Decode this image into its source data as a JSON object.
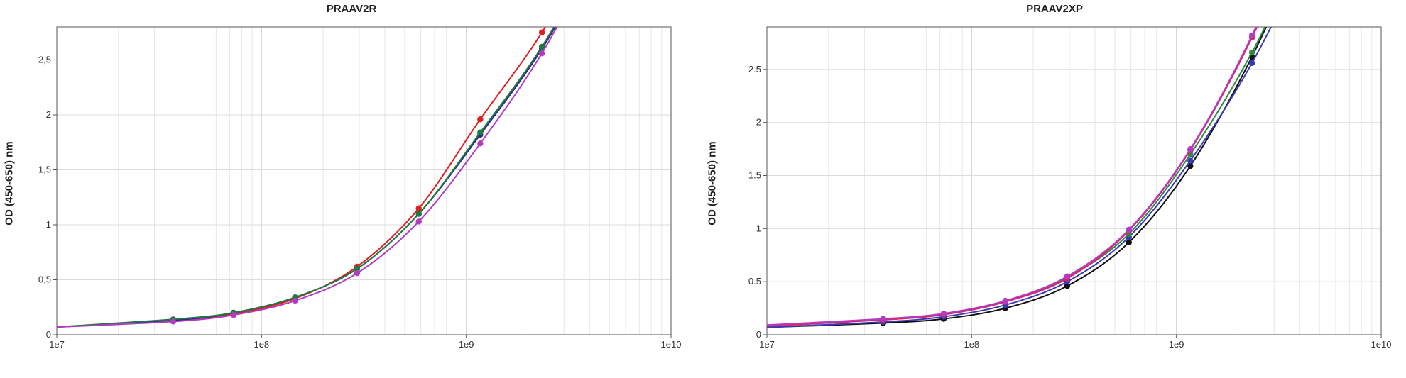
{
  "chart_data": [
    {
      "type": "line",
      "title": "PRAAV2R",
      "xlabel": "",
      "ylabel": "OD (450-650) nm",
      "xscale": "log",
      "xlim": [
        10000000,
        10000000000
      ],
      "ylim": [
        0,
        2.8
      ],
      "xticks": [
        "1e7",
        "1e8",
        "1e9",
        "1e10"
      ],
      "yticks": [
        "0",
        "0,5",
        "1",
        "1,5",
        "2",
        "2,5"
      ],
      "grid": true,
      "series": [
        {
          "color": "#e02020",
          "x": [
            37000000,
            73000000,
            146000000,
            293000000,
            586000000,
            1170000000,
            2340000000
          ],
          "y": [
            0.13,
            0.19,
            0.33,
            0.62,
            1.15,
            1.96,
            2.75
          ]
        },
        {
          "color": "#2a2a8a",
          "x": [
            37000000,
            73000000,
            146000000,
            293000000,
            586000000,
            1170000000,
            2340000000
          ],
          "y": [
            0.13,
            0.2,
            0.34,
            0.6,
            1.1,
            1.82,
            2.6
          ]
        },
        {
          "color": "#1e7a3e",
          "x": [
            37000000,
            73000000,
            146000000,
            293000000,
            586000000,
            1170000000,
            2340000000
          ],
          "y": [
            0.14,
            0.2,
            0.34,
            0.6,
            1.1,
            1.84,
            2.62
          ]
        },
        {
          "color": "#b23cc0",
          "x": [
            37000000,
            73000000,
            146000000,
            293000000,
            586000000,
            1170000000,
            2340000000
          ],
          "y": [
            0.12,
            0.18,
            0.31,
            0.56,
            1.03,
            1.74,
            2.56
          ]
        }
      ]
    },
    {
      "type": "line",
      "title": "PRAAV2XP",
      "xlabel": "",
      "ylabel": "OD (450-650) nm",
      "xscale": "log",
      "xlim": [
        10000000,
        10000000000
      ],
      "ylim": [
        0,
        2.9
      ],
      "xticks": [
        "1e7",
        "1e8",
        "1e9",
        "1e10"
      ],
      "yticks": [
        "0",
        "0.5",
        "1",
        "1.5",
        "2",
        "2.5"
      ],
      "grid": true,
      "series": [
        {
          "color": "#111111",
          "x": [
            37000000,
            73000000,
            146000000,
            293000000,
            586000000,
            1170000000,
            2340000000
          ],
          "y": [
            0.11,
            0.15,
            0.25,
            0.46,
            0.87,
            1.59,
            2.62
          ]
        },
        {
          "color": "#3a3ab8",
          "x": [
            37000000,
            73000000,
            146000000,
            293000000,
            586000000,
            1170000000,
            2340000000
          ],
          "y": [
            0.12,
            0.17,
            0.28,
            0.5,
            0.92,
            1.64,
            2.56
          ]
        },
        {
          "color": "#2e8b3e",
          "x": [
            37000000,
            73000000,
            146000000,
            293000000,
            586000000,
            1170000000,
            2340000000
          ],
          "y": [
            0.14,
            0.19,
            0.31,
            0.54,
            0.95,
            1.7,
            2.66
          ]
        },
        {
          "color": "#e0206e",
          "x": [
            37000000,
            73000000,
            146000000,
            293000000,
            586000000,
            1170000000,
            2340000000
          ],
          "y": [
            0.14,
            0.19,
            0.31,
            0.53,
            0.98,
            1.74,
            2.8
          ]
        },
        {
          "color": "#b23cc0",
          "x": [
            37000000,
            73000000,
            146000000,
            293000000,
            586000000,
            1170000000,
            2340000000
          ],
          "y": [
            0.15,
            0.2,
            0.32,
            0.55,
            0.99,
            1.75,
            2.82
          ]
        }
      ]
    }
  ]
}
